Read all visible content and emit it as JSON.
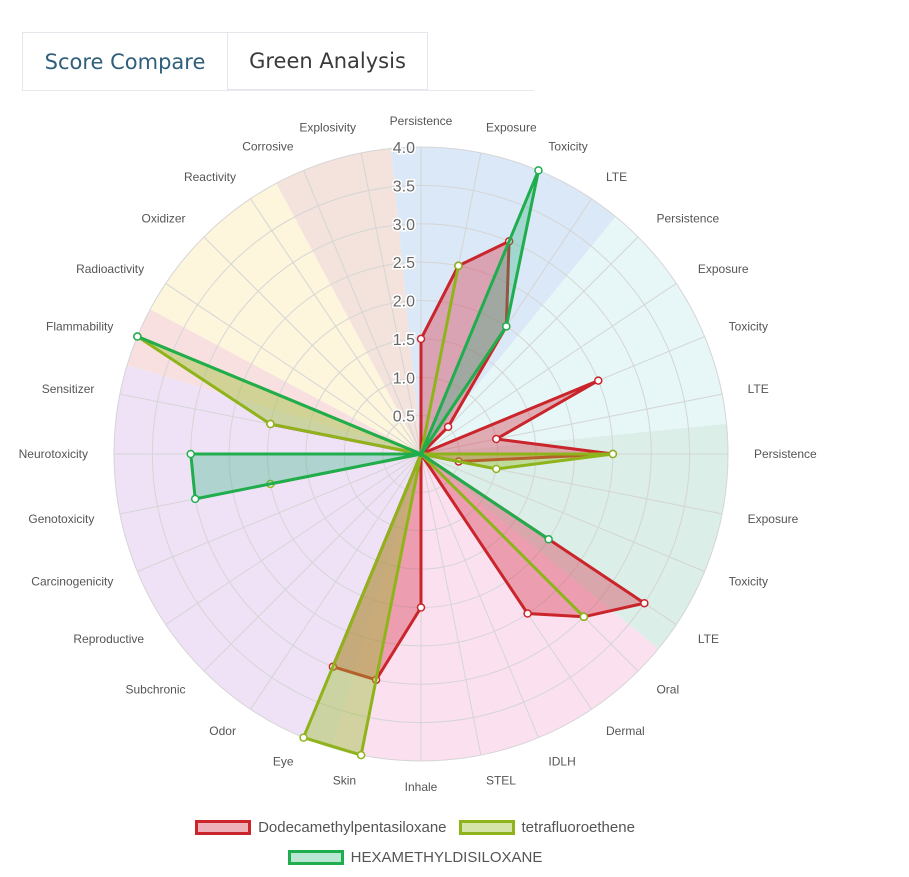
{
  "tabs": [
    {
      "label": "Score Compare",
      "active": true
    },
    {
      "label": "Green Analysis",
      "active": false
    }
  ],
  "chart_data": {
    "type": "radar",
    "rlim": [
      0,
      4.0
    ],
    "ticks": [
      "0",
      "0.5",
      "1.0",
      "1.5",
      "2.0",
      "2.5",
      "3.0",
      "3.5",
      "4.0"
    ],
    "categories": [
      "Persistence",
      "Exposure",
      "Toxicity",
      "LTE",
      "Persistence",
      "Exposure",
      "Toxicity",
      "LTE",
      "Persistence",
      "Exposure",
      "Toxicity",
      "LTE",
      "Oral",
      "Dermal",
      "IDLH",
      "STEL",
      "Inhale",
      "Skin",
      "Eye",
      "Odor",
      "Subchronic",
      "Reproductive",
      "Carcinogenicity",
      "Genotoxicity",
      "Neurotoxicity",
      "Sensitizer",
      "Flammability",
      "Radioactivity",
      "Oxidizer",
      "Reactivity",
      "Corrosive",
      "Explosivity"
    ],
    "sectors": [
      {
        "from": 0,
        "to": 3,
        "color": "#dbe8f7"
      },
      {
        "from": 4,
        "to": 7,
        "color": "#e7f7f7"
      },
      {
        "from": 8,
        "to": 11,
        "color": "#dbeee8"
      },
      {
        "from": 12,
        "to": 17,
        "color": "#fbe0f0"
      },
      {
        "from": 18,
        "to": 25,
        "color": "#efe2f6"
      },
      {
        "from": 26,
        "to": 26,
        "color": "#f8e0e0"
      },
      {
        "from": 27,
        "to": 29,
        "color": "#fdf6dc"
      },
      {
        "from": 30,
        "to": 31,
        "color": "#f3e3dc"
      }
    ],
    "series": [
      {
        "name": "Dodecamethylpentasiloxane",
        "stroke": "#c9252b",
        "fill": "rgba(214,49,70,0.38)",
        "values": [
          1.5,
          2.5,
          3.0,
          2.0,
          0.5,
          0.0,
          2.5,
          1.0,
          2.5,
          0.5,
          0.0,
          3.5,
          3.0,
          2.5,
          0.0,
          0.0,
          2.0,
          3.0,
          3.0,
          0.0,
          0.0,
          0.0,
          0.0,
          0.0,
          0.0,
          2.0,
          0.0,
          0.0,
          0.0,
          0.0,
          0.0,
          0.0
        ]
      },
      {
        "name": "tetrafluoroethene",
        "stroke": "#8fb31b",
        "fill": "rgba(150,190,40,0.40)",
        "values": [
          0.0,
          2.5,
          0.0,
          2.0,
          0.0,
          0.0,
          0.0,
          0.0,
          2.5,
          1.0,
          0.0,
          0.0,
          3.0,
          0.0,
          0.0,
          0.0,
          0.0,
          4.0,
          4.0,
          0.0,
          0.0,
          0.0,
          0.0,
          2.0,
          0.0,
          2.0,
          4.0,
          0.0,
          0.0,
          0.0,
          0.0,
          0.0
        ]
      },
      {
        "name": "HEXAMETHYLDISILOXANE",
        "stroke": "#1fad4e",
        "fill": "rgba(40,180,120,0.32)",
        "values": [
          0.0,
          0.0,
          4.0,
          2.0,
          0.0,
          0.0,
          0.0,
          0.0,
          0.0,
          0.0,
          0.0,
          2.0,
          0.0,
          0.0,
          0.0,
          0.0,
          0.0,
          0.0,
          0.0,
          0.0,
          0.0,
          0.0,
          0.0,
          3.0,
          3.0,
          0.0,
          4.0,
          0.0,
          0.0,
          0.0,
          0.0,
          0.0
        ]
      }
    ]
  }
}
